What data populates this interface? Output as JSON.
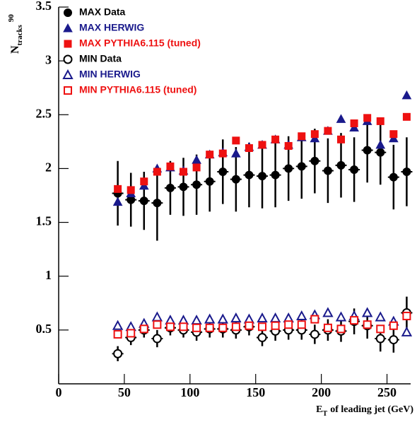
{
  "chart_data": {
    "type": "scatter",
    "ylabel": {
      "main": "N",
      "sub": "tracks",
      "sup": "90"
    },
    "xlabel": {
      "main": "E",
      "sub": "T",
      "rest": "of leading jet (GeV)"
    },
    "x": [
      45,
      55,
      65,
      75,
      85,
      95,
      105,
      115,
      125,
      135,
      145,
      155,
      165,
      175,
      185,
      195,
      205,
      215,
      225,
      235,
      245,
      255,
      265
    ],
    "xlim": [
      0,
      268
    ],
    "xticks": [
      0,
      50,
      100,
      150,
      200,
      250
    ],
    "ylim": [
      0,
      3.5
    ],
    "yticks": [
      0.5,
      1,
      1.5,
      2,
      2.5,
      3,
      3.5
    ],
    "legend": "top-left",
    "series": [
      {
        "name": "MAX Data",
        "color": "#000000",
        "marker": "circle",
        "filled": true,
        "values": [
          1.77,
          1.71,
          1.7,
          1.68,
          1.82,
          1.83,
          1.85,
          1.88,
          1.97,
          1.9,
          1.94,
          1.93,
          1.94,
          2.0,
          2.02,
          2.07,
          1.98,
          2.03,
          1.99,
          2.17,
          2.15,
          1.92,
          1.97
        ],
        "errors": [
          0.3,
          0.25,
          0.27,
          0.35,
          0.25,
          0.27,
          0.28,
          0.28,
          0.3,
          0.3,
          0.3,
          0.3,
          0.3,
          0.3,
          0.3,
          0.3,
          0.3,
          0.3,
          0.3,
          0.3,
          0.3,
          0.3,
          0.32
        ]
      },
      {
        "name": "MAX HERWIG",
        "color": "#1a1a8c",
        "marker": "triangle",
        "filled": true,
        "values": [
          1.69,
          1.77,
          1.84,
          2.0,
          2.01,
          1.98,
          2.08,
          2.13,
          2.15,
          2.14,
          2.2,
          2.22,
          2.27,
          2.22,
          2.29,
          2.28,
          2.35,
          2.46,
          2.38,
          2.44,
          2.22,
          2.28,
          2.68
        ]
      },
      {
        "name": "MAX PYTHIA6.115 (tuned)",
        "color": "#ee1111",
        "marker": "square",
        "filled": true,
        "values": [
          1.81,
          1.8,
          1.88,
          1.97,
          2.02,
          1.97,
          2.01,
          2.13,
          2.14,
          2.26,
          2.19,
          2.22,
          2.27,
          2.21,
          2.3,
          2.32,
          2.35,
          2.27,
          2.42,
          2.47,
          2.44,
          2.32,
          2.48
        ]
      },
      {
        "name": "MIN Data",
        "color": "#000000",
        "marker": "circle",
        "filled": false,
        "values": [
          0.28,
          0.43,
          0.5,
          0.42,
          0.52,
          0.5,
          0.48,
          0.51,
          0.51,
          0.5,
          0.53,
          0.43,
          0.49,
          0.5,
          0.5,
          0.46,
          0.5,
          0.49,
          0.58,
          0.54,
          0.42,
          0.41,
          0.66
        ],
        "errors": [
          0.07,
          0.07,
          0.07,
          0.08,
          0.07,
          0.07,
          0.08,
          0.08,
          0.08,
          0.08,
          0.08,
          0.08,
          0.09,
          0.09,
          0.09,
          0.09,
          0.1,
          0.1,
          0.12,
          0.12,
          0.12,
          0.12,
          0.15
        ]
      },
      {
        "name": "MIN HERWIG",
        "color": "#1a1a8c",
        "marker": "triangle",
        "filled": false,
        "values": [
          0.54,
          0.53,
          0.56,
          0.62,
          0.59,
          0.59,
          0.59,
          0.6,
          0.6,
          0.61,
          0.6,
          0.61,
          0.61,
          0.61,
          0.63,
          0.64,
          0.66,
          0.62,
          0.63,
          0.66,
          0.62,
          0.58,
          0.48
        ]
      },
      {
        "name": "MIN PYTHIA6.115 (tuned)",
        "color": "#ee1111",
        "marker": "square",
        "filled": false,
        "values": [
          0.46,
          0.47,
          0.51,
          0.55,
          0.53,
          0.53,
          0.52,
          0.52,
          0.52,
          0.53,
          0.54,
          0.53,
          0.54,
          0.55,
          0.55,
          0.6,
          0.52,
          0.51,
          0.59,
          0.55,
          0.51,
          0.54,
          0.63
        ]
      }
    ]
  }
}
